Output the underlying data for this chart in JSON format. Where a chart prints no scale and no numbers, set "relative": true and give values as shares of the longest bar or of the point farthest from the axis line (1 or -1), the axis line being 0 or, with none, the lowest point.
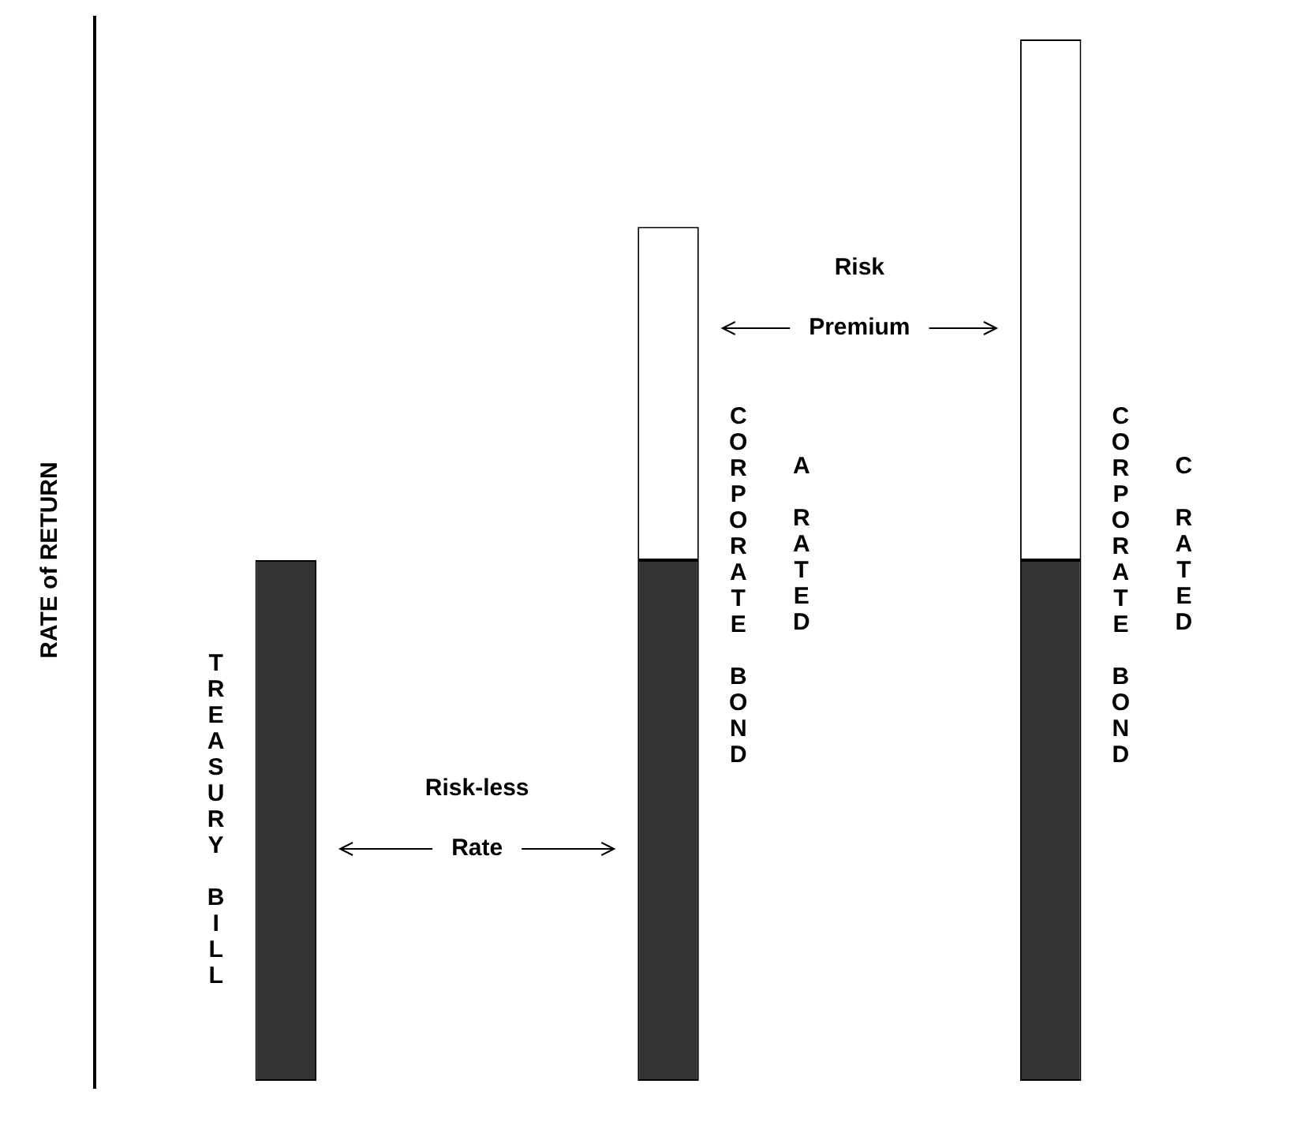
{
  "chart_data": {
    "type": "bar",
    "relative": true,
    "stacked": true,
    "ylabel": "RATE of RETURN",
    "categories": [
      "TREASURY BILL",
      "CORPORATE BOND",
      "CORPORATE BOND"
    ],
    "series": [
      {
        "color": "#333333",
        "values": [
          0.5,
          0.5,
          0.5
        ]
      },
      {
        "color": "#ffffff",
        "values": [
          0,
          0.32,
          0.5
        ]
      }
    ],
    "annotations": [
      "Risk-less Rate",
      "Risk Premium",
      "A RATED",
      "C RATED"
    ],
    "legend": false
  }
}
